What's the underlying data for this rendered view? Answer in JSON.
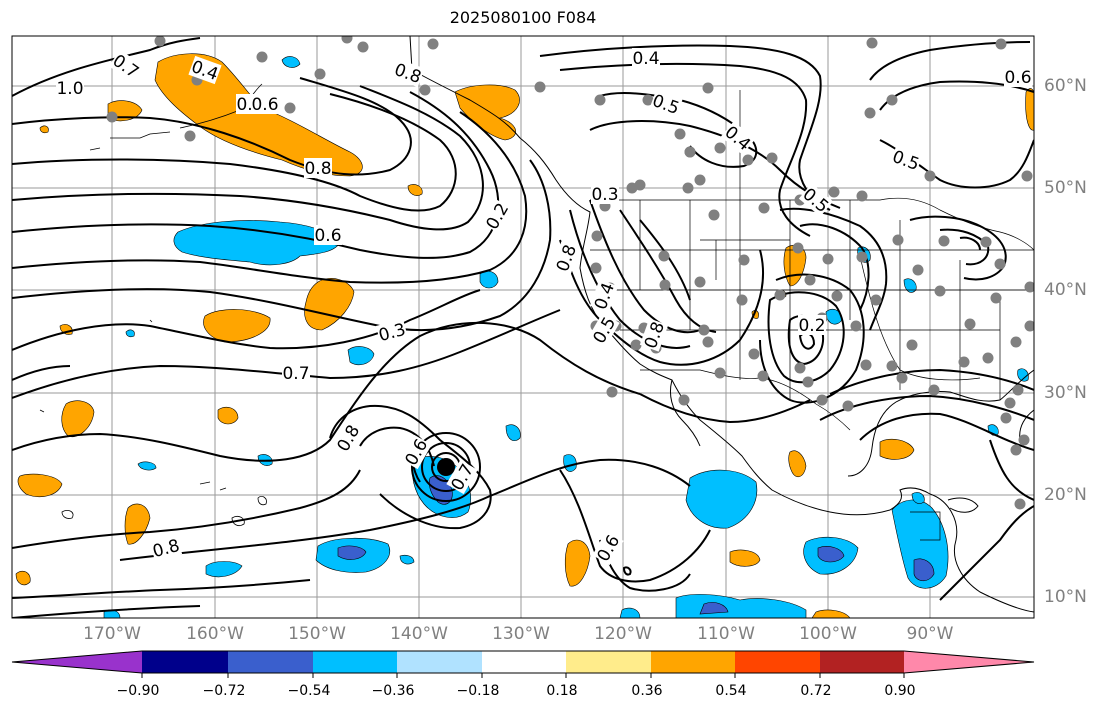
{
  "title": "2025080100 F084",
  "map": {
    "lon_labels": [
      "170°W",
      "160°W",
      "150°W",
      "140°W",
      "130°W",
      "120°W",
      "110°W",
      "100°W",
      "90°W"
    ],
    "lat_labels": [
      "60°N",
      "50°N",
      "40°N",
      "30°N",
      "20°N",
      "10°N"
    ],
    "contour_labels": [
      "1.0",
      "0.7",
      "0.4",
      "0.8",
      "0.6",
      "0.4",
      "0.6",
      "0.8",
      "0.4",
      "0.5",
      "0.4",
      "0.5",
      "0.5",
      "0.6",
      "0.2",
      "0.3",
      "0.7",
      "0.8",
      "0.6",
      "0.7",
      "0.8",
      "0.6",
      "0.8",
      "0.4",
      "0.5",
      "0.8",
      "0.3",
      "0.2"
    ],
    "center_marker": "black-dot",
    "station_marker_color": "#808080"
  },
  "colorbar": {
    "colors": [
      "#9932cc",
      "#00008b",
      "#3a5fcd",
      "#00bfff",
      "#b0e2ff",
      "#ffffff",
      "#ffec8b",
      "#ffa500",
      "#ff4500",
      "#b22222",
      "#ff88aa"
    ],
    "labels": [
      "−0.90",
      "−0.72",
      "−0.54",
      "−0.36",
      "−0.18",
      "0.18",
      "0.36",
      "0.54",
      "0.72",
      "0.90"
    ]
  }
}
